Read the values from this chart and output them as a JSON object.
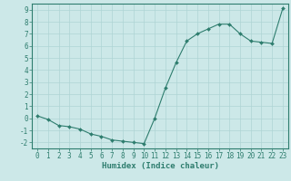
{
  "x": [
    0,
    1,
    2,
    3,
    4,
    5,
    6,
    7,
    8,
    9,
    10,
    11,
    12,
    13,
    14,
    15,
    16,
    17,
    18,
    19,
    20,
    21,
    22,
    23
  ],
  "y": [
    0.2,
    -0.1,
    -0.6,
    -0.7,
    -0.9,
    -1.3,
    -1.5,
    -1.8,
    -1.9,
    -2.0,
    -2.1,
    0.0,
    2.5,
    4.6,
    6.4,
    7.0,
    7.4,
    7.8,
    7.8,
    7.0,
    6.4,
    6.3,
    6.2,
    9.1
  ],
  "xlabel": "Humidex (Indice chaleur)",
  "ylabel": "",
  "xlim": [
    -0.5,
    23.5
  ],
  "ylim": [
    -2.5,
    9.5
  ],
  "yticks": [
    -2,
    -1,
    0,
    1,
    2,
    3,
    4,
    5,
    6,
    7,
    8,
    9
  ],
  "xticks": [
    0,
    1,
    2,
    3,
    4,
    5,
    6,
    7,
    8,
    9,
    10,
    11,
    12,
    13,
    14,
    15,
    16,
    17,
    18,
    19,
    20,
    21,
    22,
    23
  ],
  "line_color": "#2e7d6e",
  "marker_color": "#2e7d6e",
  "bg_color": "#cce8e8",
  "grid_color": "#aed4d4",
  "xlabel_fontsize": 6.5,
  "tick_fontsize": 5.5
}
